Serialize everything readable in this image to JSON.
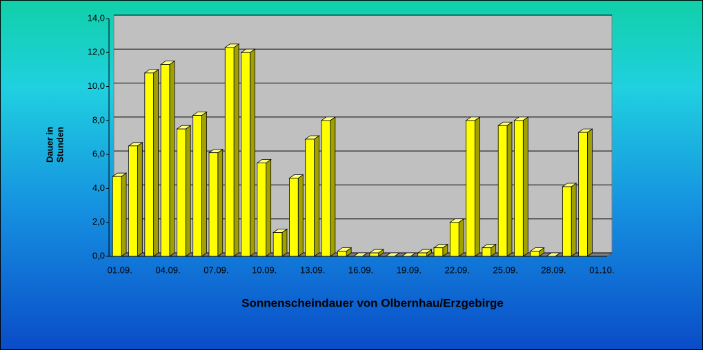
{
  "chart_data": {
    "type": "bar3d",
    "title": "Sonnenscheindauer von Olbernhau/Erzgebirge",
    "y_label": [
      "Dauer in",
      "Stunden"
    ],
    "categories": [
      "01.09.",
      null,
      null,
      "04.09.",
      null,
      null,
      "07.09.",
      null,
      null,
      "10.09.",
      null,
      null,
      "13.09.",
      null,
      null,
      "16.09.",
      null,
      null,
      "19.09.",
      null,
      null,
      "22.09.",
      null,
      null,
      "25.09.",
      null,
      null,
      "28.09.",
      null,
      null,
      "01.10."
    ],
    "values": [
      4.7,
      6.5,
      10.8,
      11.3,
      7.5,
      8.3,
      6.1,
      12.3,
      12.0,
      5.5,
      1.4,
      4.6,
      6.9,
      8.0,
      0.3,
      0,
      0.2,
      0,
      0,
      0.2,
      0.5,
      2.0,
      8.0,
      0.5,
      7.7,
      8.0,
      0.3,
      0,
      4.1,
      7.3,
      null
    ],
    "color": "#ffff00",
    "ylim": [
      0,
      14
    ],
    "yticks": [
      {
        "value": 0,
        "label": "0,0"
      },
      {
        "value": 2,
        "label": "2,0"
      },
      {
        "value": 4,
        "label": "4,0"
      },
      {
        "value": 6,
        "label": "6,0"
      },
      {
        "value": 8,
        "label": "8,0"
      },
      {
        "value": 10,
        "label": "10,0"
      },
      {
        "value": 12,
        "label": "12,0"
      },
      {
        "value": 14,
        "label": "14,0"
      }
    ],
    "grid": true
  }
}
